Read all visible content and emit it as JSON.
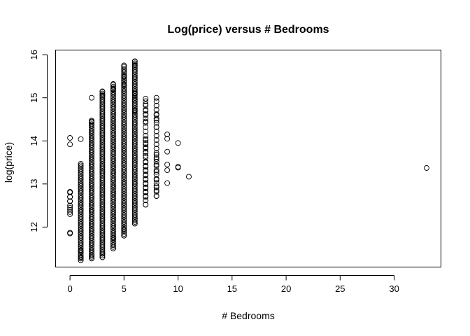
{
  "chart_data": {
    "type": "scatter",
    "title": "Log(price) versus # Bedrooms",
    "xlabel": "# Bedrooms",
    "ylabel": "log(price)",
    "xlim": [
      -1.3,
      34.3
    ],
    "ylim": [
      11.08,
      16.1
    ],
    "xticks": [
      0,
      5,
      10,
      15,
      20,
      25,
      30
    ],
    "yticks": [
      12,
      13,
      14,
      15,
      16
    ],
    "grid": false,
    "marker": "open-circle",
    "columns": [
      {
        "x": 0,
        "ymin": 12.3,
        "ymax": 12.85,
        "dense": false
      },
      {
        "x": 1,
        "ymin": 11.23,
        "ymax": 13.48,
        "dense": true
      },
      {
        "x": 2,
        "ymin": 11.27,
        "ymax": 14.5,
        "dense": true
      },
      {
        "x": 3,
        "ymin": 11.3,
        "ymax": 15.15,
        "dense": true
      },
      {
        "x": 4,
        "ymin": 11.5,
        "ymax": 15.32,
        "dense": true
      },
      {
        "x": 5,
        "ymin": 11.8,
        "ymax": 15.75,
        "dense": true
      },
      {
        "x": 6,
        "ymin": 12.08,
        "ymax": 15.85,
        "dense": true
      },
      {
        "x": 7,
        "ymin": 12.52,
        "ymax": 14.98,
        "dense": false
      },
      {
        "x": 8,
        "ymin": 12.72,
        "ymax": 15.0,
        "dense": false
      }
    ],
    "points": [
      {
        "x": 0,
        "y": 14.07
      },
      {
        "x": 0,
        "y": 13.92
      },
      {
        "x": 0,
        "y": 11.87
      },
      {
        "x": 0,
        "y": 11.85
      },
      {
        "x": 0,
        "y": 12.35
      },
      {
        "x": 0,
        "y": 12.45
      },
      {
        "x": 0,
        "y": 12.6
      },
      {
        "x": 0,
        "y": 12.7
      },
      {
        "x": 0,
        "y": 12.82
      },
      {
        "x": 1,
        "y": 14.04
      },
      {
        "x": 1,
        "y": 11.23
      },
      {
        "x": 1,
        "y": 11.3
      },
      {
        "x": 1,
        "y": 11.45
      },
      {
        "x": 2,
        "y": 15.0
      },
      {
        "x": 2,
        "y": 14.45
      },
      {
        "x": 2,
        "y": 11.27
      },
      {
        "x": 2,
        "y": 11.35
      },
      {
        "x": 3,
        "y": 15.15
      },
      {
        "x": 3,
        "y": 15.05
      },
      {
        "x": 3,
        "y": 11.3
      },
      {
        "x": 3,
        "y": 11.38
      },
      {
        "x": 4,
        "y": 15.32
      },
      {
        "x": 4,
        "y": 15.2
      },
      {
        "x": 4,
        "y": 11.5
      },
      {
        "x": 4,
        "y": 11.75
      },
      {
        "x": 5,
        "y": 15.75
      },
      {
        "x": 5,
        "y": 15.5
      },
      {
        "x": 5,
        "y": 15.4
      },
      {
        "x": 5,
        "y": 15.3
      },
      {
        "x": 5,
        "y": 11.8
      },
      {
        "x": 5,
        "y": 11.95
      },
      {
        "x": 6,
        "y": 15.85
      },
      {
        "x": 6,
        "y": 15.75
      },
      {
        "x": 6,
        "y": 15.48
      },
      {
        "x": 6,
        "y": 15.1
      },
      {
        "x": 6,
        "y": 14.95
      },
      {
        "x": 6,
        "y": 14.7
      },
      {
        "x": 6,
        "y": 12.08
      },
      {
        "x": 6,
        "y": 12.2
      },
      {
        "x": 7,
        "y": 14.98
      },
      {
        "x": 7,
        "y": 14.85
      },
      {
        "x": 7,
        "y": 14.7
      },
      {
        "x": 7,
        "y": 14.6
      },
      {
        "x": 7,
        "y": 14.45
      },
      {
        "x": 7,
        "y": 14.05
      },
      {
        "x": 7,
        "y": 13.95
      },
      {
        "x": 7,
        "y": 13.85
      },
      {
        "x": 7,
        "y": 13.75
      },
      {
        "x": 7,
        "y": 13.65
      },
      {
        "x": 7,
        "y": 13.5
      },
      {
        "x": 7,
        "y": 13.4
      },
      {
        "x": 7,
        "y": 13.3
      },
      {
        "x": 7,
        "y": 13.2
      },
      {
        "x": 7,
        "y": 13.1
      },
      {
        "x": 7,
        "y": 13.0
      },
      {
        "x": 7,
        "y": 12.9
      },
      {
        "x": 7,
        "y": 12.8
      },
      {
        "x": 7,
        "y": 12.7
      },
      {
        "x": 7,
        "y": 12.62
      },
      {
        "x": 7,
        "y": 12.52
      },
      {
        "x": 8,
        "y": 15.0
      },
      {
        "x": 8,
        "y": 14.6
      },
      {
        "x": 8,
        "y": 14.48
      },
      {
        "x": 8,
        "y": 14.32
      },
      {
        "x": 8,
        "y": 13.68
      },
      {
        "x": 8,
        "y": 13.58
      },
      {
        "x": 8,
        "y": 13.45
      },
      {
        "x": 8,
        "y": 13.28
      },
      {
        "x": 8,
        "y": 13.1
      },
      {
        "x": 8,
        "y": 12.95
      },
      {
        "x": 8,
        "y": 12.85
      },
      {
        "x": 8,
        "y": 12.72
      },
      {
        "x": 9,
        "y": 14.15
      },
      {
        "x": 9,
        "y": 14.05
      },
      {
        "x": 9,
        "y": 13.75
      },
      {
        "x": 9,
        "y": 13.45
      },
      {
        "x": 9,
        "y": 13.32
      },
      {
        "x": 9,
        "y": 13.02
      },
      {
        "x": 10,
        "y": 13.95
      },
      {
        "x": 10,
        "y": 13.4
      },
      {
        "x": 10,
        "y": 13.38
      },
      {
        "x": 11,
        "y": 13.17
      },
      {
        "x": 33,
        "y": 13.37
      }
    ]
  }
}
